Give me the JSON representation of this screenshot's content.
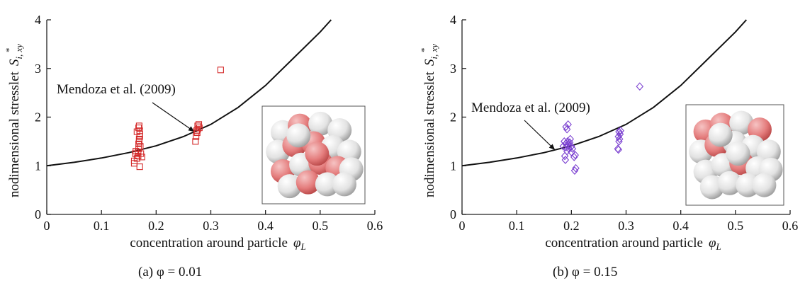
{
  "chart_data": [
    {
      "type": "scatter",
      "caption": "(a) φ = 0.01",
      "x_label": "concentration around particle",
      "x_symbol": "φ",
      "x_sub": "L",
      "y_label": "nodimensional stresslet",
      "y_symbol": "S",
      "y_sub": "i, xy",
      "y_sup": "*",
      "xlim": [
        0,
        0.6
      ],
      "ylim": [
        0,
        4
      ],
      "xticks": [
        0,
        0.1,
        0.2,
        0.3,
        0.4,
        0.5,
        0.6
      ],
      "yticks": [
        0,
        1,
        2,
        3,
        4
      ],
      "series": [
        {
          "name": "Mendoza et al. (2009)",
          "type": "line",
          "color": "#111111",
          "x": [
            0,
            0.05,
            0.1,
            0.15,
            0.2,
            0.25,
            0.3,
            0.35,
            0.4,
            0.45,
            0.5,
            0.52
          ],
          "values": [
            1,
            1.07,
            1.16,
            1.27,
            1.41,
            1.6,
            1.85,
            2.2,
            2.65,
            3.2,
            3.75,
            4
          ]
        },
        {
          "type": "scatter",
          "marker": "square",
          "color": "#d42a2a",
          "x": [
            0.16,
            0.16,
            0.162,
            0.163,
            0.165,
            0.167,
            0.167,
            0.168,
            0.168,
            0.169,
            0.169,
            0.17,
            0.17,
            0.17,
            0.168,
            0.169,
            0.171,
            0.172,
            0.17,
            0.174,
            0.165,
            0.272,
            0.273,
            0.275,
            0.276,
            0.276,
            0.278,
            0.274,
            0.279,
            0.318
          ],
          "values": [
            1.05,
            1.1,
            1.25,
            1.3,
            1.15,
            1.2,
            1.28,
            1.35,
            1.45,
            1.5,
            1.55,
            1.6,
            1.65,
            1.72,
            1.78,
            1.82,
            1.4,
            1.25,
            0.98,
            1.18,
            1.7,
            1.5,
            1.6,
            1.68,
            1.75,
            1.82,
            1.85,
            1.72,
            1.78,
            2.97
          ]
        }
      ]
    },
    {
      "type": "scatter",
      "caption": "(b) φ = 0.15",
      "x_label": "concentration around particle",
      "x_symbol": "φ",
      "x_sub": "L",
      "y_label": "nodimensional stresslet",
      "y_symbol": "S",
      "y_sub": "i, xy",
      "y_sup": "*",
      "xlim": [
        0,
        0.6
      ],
      "ylim": [
        0,
        4
      ],
      "xticks": [
        0,
        0.1,
        0.2,
        0.3,
        0.4,
        0.5,
        0.6
      ],
      "yticks": [
        0,
        1,
        2,
        3,
        4
      ],
      "series": [
        {
          "name": "Mendoza et al. (2009)",
          "type": "line",
          "color": "#111111",
          "x": [
            0,
            0.05,
            0.1,
            0.15,
            0.2,
            0.25,
            0.3,
            0.35,
            0.4,
            0.45,
            0.5,
            0.52
          ],
          "values": [
            1,
            1.07,
            1.16,
            1.27,
            1.41,
            1.6,
            1.85,
            2.2,
            2.65,
            3.2,
            3.75,
            4
          ]
        },
        {
          "type": "scatter",
          "marker": "diamond",
          "color": "#7a3fd0",
          "x": [
            0.19,
            0.19,
            0.192,
            0.193,
            0.195,
            0.196,
            0.197,
            0.198,
            0.19,
            0.194,
            0.192,
            0.188,
            0.189,
            0.2,
            0.2,
            0.202,
            0.205,
            0.207,
            0.208,
            0.206,
            0.185,
            0.187,
            0.286,
            0.285,
            0.287,
            0.288,
            0.286,
            0.289,
            0.287,
            0.29,
            0.325
          ],
          "values": [
            1.45,
            1.38,
            1.3,
            1.5,
            1.42,
            1.35,
            1.48,
            1.55,
            1.8,
            1.85,
            1.75,
            1.2,
            1.12,
            1.4,
            1.28,
            1.35,
            1.18,
            1.22,
            0.95,
            0.9,
            1.4,
            1.5,
            1.33,
            1.35,
            1.5,
            1.55,
            1.6,
            1.65,
            1.7,
            1.72,
            2.63
          ]
        }
      ]
    }
  ]
}
